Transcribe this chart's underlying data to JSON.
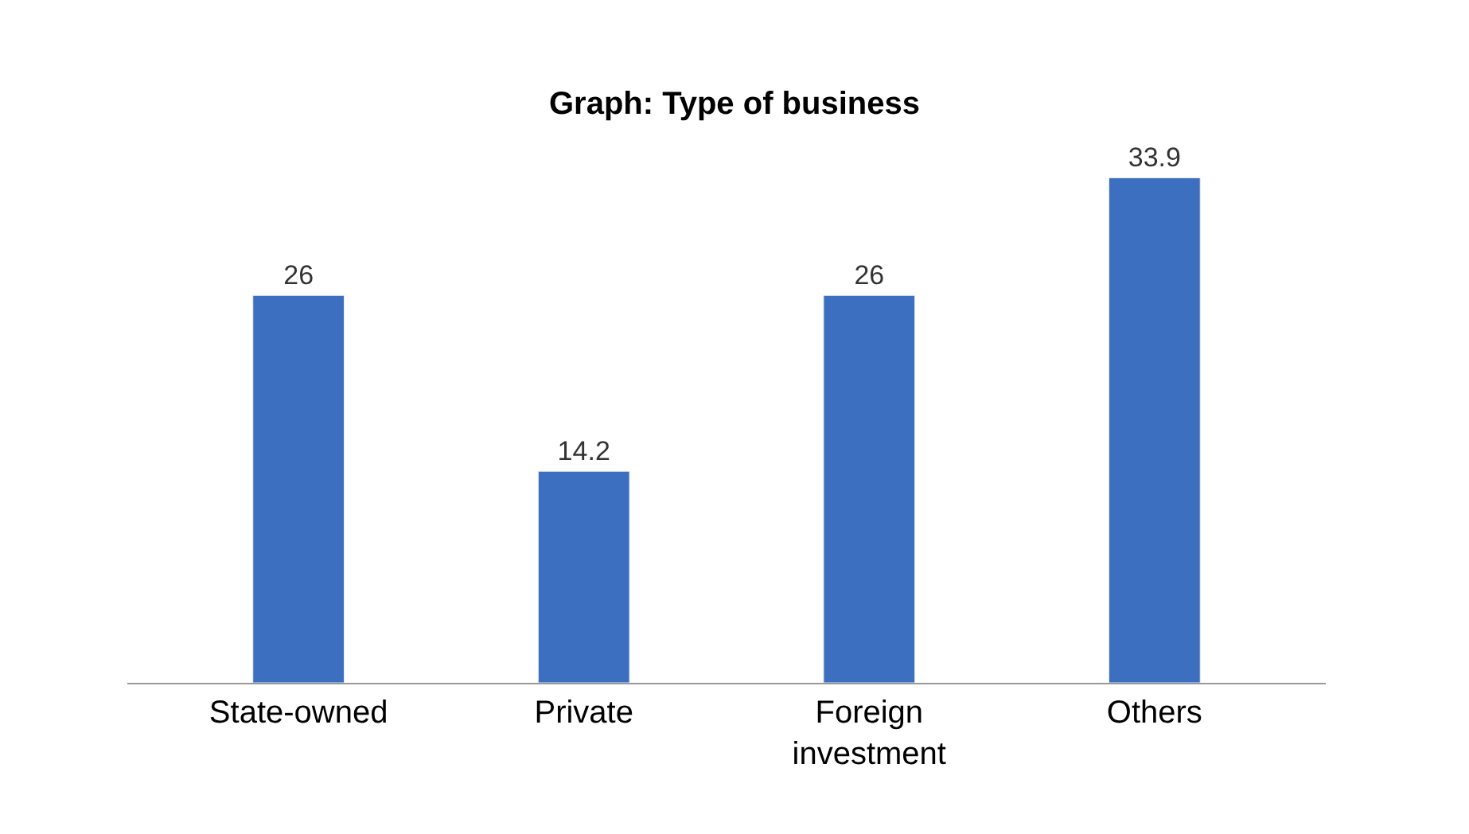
{
  "chart_data": {
    "type": "bar",
    "title": "Graph: Type of business",
    "categories": [
      "State-owned",
      "Private",
      "Foreign investment",
      "Others"
    ],
    "values": [
      26,
      14.2,
      26,
      33.9
    ],
    "color": "#3d6fc0",
    "data_labels": true,
    "legend": false
  }
}
